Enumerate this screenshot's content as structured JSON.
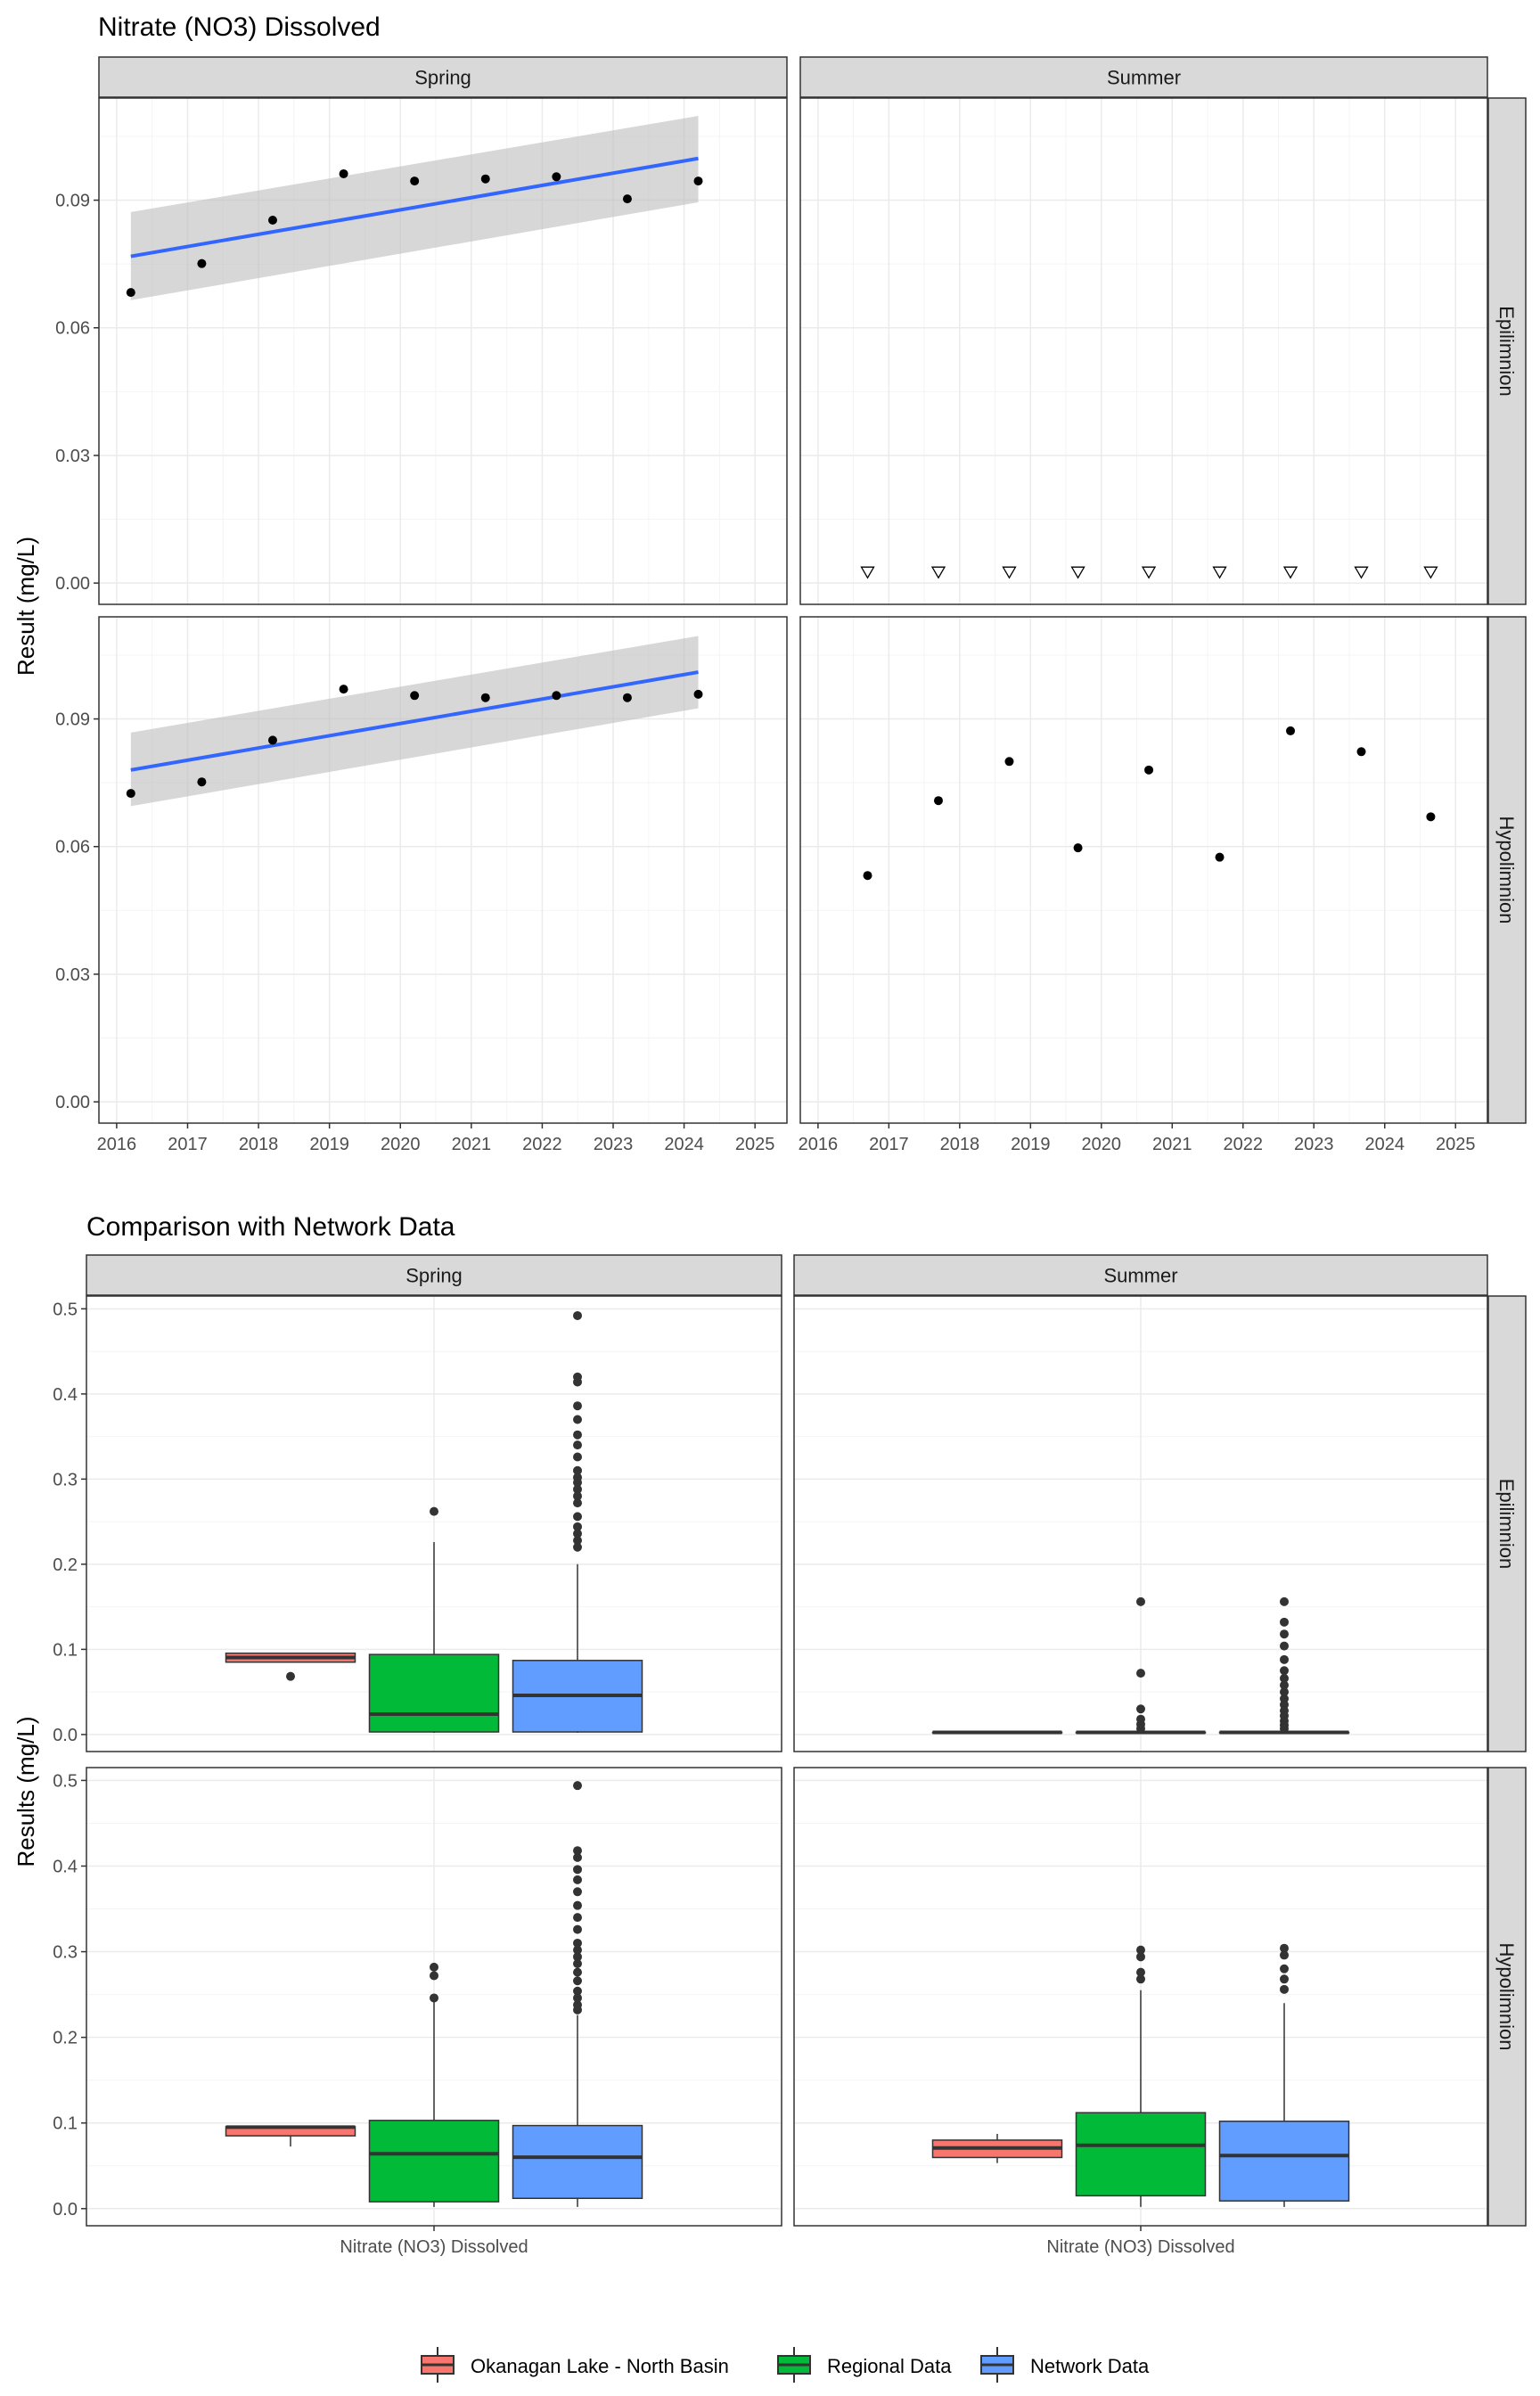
{
  "colors": {
    "panel_border": "#333333",
    "strip_fill": "#d9d9d9",
    "grid_major": "#ebebeb",
    "grid_minor": "#f4f4f4",
    "trend_line": "#3366ff",
    "ribbon": "#bdbdbd",
    "points": "#000000",
    "okanagan": "#f8766d",
    "regional": "#00ba38",
    "network": "#619cff"
  },
  "chart_data": [
    {
      "type": "scatter",
      "title": "Nitrate (NO3) Dissolved",
      "ylabel": "Result (mg/L)",
      "xlabel": "",
      "col_facets": [
        "Spring",
        "Summer"
      ],
      "row_facets": [
        "Epilimnion",
        "Hypolimnion"
      ],
      "xlim": [
        2015.75,
        2025.45
      ],
      "ylim": [
        -0.005,
        0.114
      ],
      "x_ticks": [
        2016,
        2017,
        2018,
        2019,
        2020,
        2021,
        2022,
        2023,
        2024,
        2025
      ],
      "y_ticks": [
        0.0,
        0.03,
        0.06,
        0.09
      ],
      "y_tick_labels": [
        "0.00",
        "0.03",
        "0.06",
        "0.09"
      ],
      "grid": true,
      "panels": [
        {
          "col": "Spring",
          "row": "Epilimnion",
          "points": [
            {
              "x": 2016.2,
              "y": 0.0683
            },
            {
              "x": 2017.2,
              "y": 0.0751
            },
            {
              "x": 2018.2,
              "y": 0.0853
            },
            {
              "x": 2019.2,
              "y": 0.0962
            },
            {
              "x": 2020.2,
              "y": 0.0945
            },
            {
              "x": 2021.2,
              "y": 0.095
            },
            {
              "x": 2022.2,
              "y": 0.0955
            },
            {
              "x": 2023.2,
              "y": 0.0903
            },
            {
              "x": 2024.2,
              "y": 0.0945
            }
          ],
          "trend": {
            "x0": 2016.2,
            "y0": 0.0768,
            "x1": 2024.2,
            "y1": 0.0998,
            "ci_lower": [
              0.0665,
              0.0895
            ],
            "ci_upper": [
              0.0872,
              0.1098
            ]
          }
        },
        {
          "col": "Summer",
          "row": "Epilimnion",
          "below_detection": [
            {
              "x": 2016.7,
              "y": 0.0025
            },
            {
              "x": 2017.7,
              "y": 0.0025
            },
            {
              "x": 2018.7,
              "y": 0.0025
            },
            {
              "x": 2019.67,
              "y": 0.0025
            },
            {
              "x": 2020.67,
              "y": 0.0025
            },
            {
              "x": 2021.67,
              "y": 0.0025
            },
            {
              "x": 2022.67,
              "y": 0.0025
            },
            {
              "x": 2023.67,
              "y": 0.0025
            },
            {
              "x": 2024.65,
              "y": 0.0025
            }
          ]
        },
        {
          "col": "Spring",
          "row": "Hypolimnion",
          "points": [
            {
              "x": 2016.2,
              "y": 0.0725
            },
            {
              "x": 2017.2,
              "y": 0.0752
            },
            {
              "x": 2018.2,
              "y": 0.085
            },
            {
              "x": 2019.2,
              "y": 0.097
            },
            {
              "x": 2020.2,
              "y": 0.0955
            },
            {
              "x": 2021.2,
              "y": 0.095
            },
            {
              "x": 2022.2,
              "y": 0.0955
            },
            {
              "x": 2023.2,
              "y": 0.095
            },
            {
              "x": 2024.2,
              "y": 0.0958
            }
          ],
          "trend": {
            "x0": 2016.2,
            "y0": 0.078,
            "x1": 2024.2,
            "y1": 0.101,
            "ci_lower": [
              0.0695,
              0.0925
            ],
            "ci_upper": [
              0.0868,
              0.1095
            ]
          }
        },
        {
          "col": "Summer",
          "row": "Hypolimnion",
          "points": [
            {
              "x": 2016.7,
              "y": 0.0532
            },
            {
              "x": 2017.7,
              "y": 0.0708
            },
            {
              "x": 2018.7,
              "y": 0.08
            },
            {
              "x": 2019.67,
              "y": 0.0597
            },
            {
              "x": 2020.67,
              "y": 0.078
            },
            {
              "x": 2021.67,
              "y": 0.0575
            },
            {
              "x": 2022.67,
              "y": 0.0872
            },
            {
              "x": 2023.67,
              "y": 0.0823
            },
            {
              "x": 2024.65,
              "y": 0.067
            }
          ]
        }
      ]
    },
    {
      "type": "box",
      "title": "Comparison with Network Data",
      "ylabel": "Results (mg/L)",
      "xlabel": "",
      "col_facets": [
        "Spring",
        "Summer"
      ],
      "row_facets": [
        "Epilimnion",
        "Hypolimnion"
      ],
      "categories": [
        "Nitrate (NO3) Dissolved"
      ],
      "ylim": [
        -0.02,
        0.515
      ],
      "y_ticks": [
        0.0,
        0.1,
        0.2,
        0.3,
        0.4,
        0.5
      ],
      "y_tick_labels": [
        "0.0",
        "0.1",
        "0.2",
        "0.3",
        "0.4",
        "0.5"
      ],
      "grid": true,
      "legend": {
        "position": "bottom",
        "entries": [
          {
            "name": "Okanagan Lake - North Basin",
            "color": "#f8766d"
          },
          {
            "name": "Regional Data",
            "color": "#00ba38"
          },
          {
            "name": "Network Data",
            "color": "#619cff"
          }
        ]
      },
      "panels": [
        {
          "col": "Spring",
          "row": "Epilimnion",
          "boxes": [
            {
              "series": "Okanagan Lake - North Basin",
              "lower_whisker": 0.085,
              "q1": 0.085,
              "median": 0.0905,
              "q3": 0.0955,
              "upper_whisker": 0.0962,
              "outliers": [
                0.0683
              ]
            },
            {
              "series": "Regional Data",
              "lower_whisker": 0.002,
              "q1": 0.003,
              "median": 0.024,
              "q3": 0.094,
              "upper_whisker": 0.226,
              "outliers": [
                0.262
              ]
            },
            {
              "series": "Network Data",
              "lower_whisker": 0.002,
              "q1": 0.003,
              "median": 0.046,
              "q3": 0.087,
              "upper_whisker": 0.2,
              "outliers": [
                0.492,
                0.42,
                0.414,
                0.386,
                0.37,
                0.352,
                0.34,
                0.326,
                0.31,
                0.302,
                0.296,
                0.288,
                0.28,
                0.272,
                0.256,
                0.244,
                0.236,
                0.228,
                0.22
              ]
            }
          ]
        },
        {
          "col": "Summer",
          "row": "Epilimnion",
          "boxes": [
            {
              "series": "Okanagan Lake - North Basin",
              "lower_whisker": 0.0025,
              "q1": 0.0025,
              "median": 0.0025,
              "q3": 0.0025,
              "upper_whisker": 0.0025,
              "outliers": []
            },
            {
              "series": "Regional Data",
              "lower_whisker": 0.0025,
              "q1": 0.0025,
              "median": 0.0025,
              "q3": 0.0025,
              "upper_whisker": 0.0025,
              "outliers": [
                0.156,
                0.072,
                0.03,
                0.018,
                0.012,
                0.007
              ]
            },
            {
              "series": "Network Data",
              "lower_whisker": 0.0025,
              "q1": 0.0025,
              "median": 0.0025,
              "q3": 0.0025,
              "upper_whisker": 0.0025,
              "outliers": [
                0.156,
                0.132,
                0.118,
                0.104,
                0.088,
                0.075,
                0.066,
                0.058,
                0.05,
                0.042,
                0.035,
                0.028,
                0.022,
                0.016,
                0.011,
                0.007
              ]
            }
          ]
        },
        {
          "col": "Spring",
          "row": "Hypolimnion",
          "boxes": [
            {
              "series": "Okanagan Lake - North Basin",
              "lower_whisker": 0.0725,
              "q1": 0.085,
              "median": 0.0952,
              "q3": 0.0956,
              "upper_whisker": 0.097,
              "outliers": []
            },
            {
              "series": "Regional Data",
              "lower_whisker": 0.002,
              "q1": 0.008,
              "median": 0.064,
              "q3": 0.103,
              "upper_whisker": 0.245,
              "outliers": [
                0.282,
                0.272,
                0.246
              ]
            },
            {
              "series": "Network Data",
              "lower_whisker": 0.002,
              "q1": 0.012,
              "median": 0.06,
              "q3": 0.097,
              "upper_whisker": 0.226,
              "outliers": [
                0.494,
                0.418,
                0.41,
                0.396,
                0.384,
                0.37,
                0.354,
                0.34,
                0.326,
                0.31,
                0.302,
                0.294,
                0.286,
                0.276,
                0.266,
                0.254,
                0.246,
                0.238,
                0.232
              ]
            }
          ]
        },
        {
          "col": "Summer",
          "row": "Hypolimnion",
          "boxes": [
            {
              "series": "Okanagan Lake - North Basin",
              "lower_whisker": 0.0532,
              "q1": 0.0597,
              "median": 0.0708,
              "q3": 0.08,
              "upper_whisker": 0.0872,
              "outliers": []
            },
            {
              "series": "Regional Data",
              "lower_whisker": 0.002,
              "q1": 0.015,
              "median": 0.074,
              "q3": 0.112,
              "upper_whisker": 0.255,
              "outliers": [
                0.302,
                0.294,
                0.276,
                0.268
              ]
            },
            {
              "series": "Network Data",
              "lower_whisker": 0.002,
              "q1": 0.009,
              "median": 0.062,
              "q3": 0.102,
              "upper_whisker": 0.24,
              "outliers": [
                0.304,
                0.296,
                0.28,
                0.268,
                0.256
              ]
            }
          ]
        }
      ]
    }
  ]
}
